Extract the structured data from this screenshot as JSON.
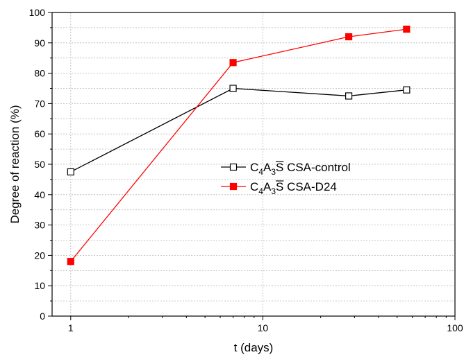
{
  "chart_data": {
    "type": "line",
    "title": "",
    "xlabel": "t (days)",
    "ylabel": "Degree of reaction (%)",
    "xscale": "log",
    "xlim": [
      0.8,
      100
    ],
    "ylim": [
      0,
      100
    ],
    "grid": true,
    "legend_position": "center-right",
    "xticks": [
      1,
      10,
      100
    ],
    "xtick_labels": [
      "1",
      "10",
      "100"
    ],
    "yticks": [
      0,
      10,
      20,
      30,
      40,
      50,
      60,
      70,
      80,
      90,
      100
    ],
    "ytick_labels": [
      "0",
      "10",
      "20",
      "30",
      "40",
      "50",
      "60",
      "70",
      "80",
      "90",
      "100"
    ],
    "series": [
      {
        "name": "C4A3S̄ CSA-control",
        "legend_parts": {
          "c": "C",
          "c_sub": "4",
          "a": "A",
          "a_sub": "3",
          "s": "S",
          "rest": " CSA-control"
        },
        "x": [
          1,
          7,
          28,
          56
        ],
        "y": [
          47.5,
          75,
          72.5,
          74.5
        ],
        "color": "#000000",
        "marker": "open-square"
      },
      {
        "name": "C4A3S̄ CSA-D24",
        "legend_parts": {
          "c": "C",
          "c_sub": "4",
          "a": "A",
          "a_sub": "3",
          "s": "S",
          "rest": " CSA-D24"
        },
        "x": [
          1,
          7,
          28,
          56
        ],
        "y": [
          18,
          83.5,
          92,
          94.5
        ],
        "color": "#ff0000",
        "marker": "filled-square"
      }
    ]
  }
}
